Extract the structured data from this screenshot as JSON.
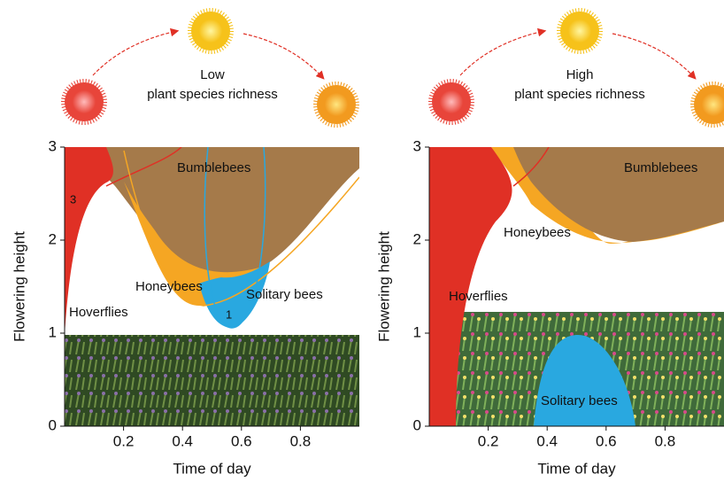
{
  "chart_data": [
    {
      "type": "area",
      "title_lines": [
        "Low",
        "plant species richness"
      ],
      "xlabel": "Time of day",
      "ylabel": "Flowering height",
      "xlim": [
        0,
        1
      ],
      "ylim": [
        0,
        3
      ],
      "xticks": [
        0.2,
        0.4,
        0.6,
        0.8
      ],
      "yticks": [
        0,
        1,
        2,
        3
      ],
      "annotations": [
        "Bumblebees",
        "Honeybees",
        "Solitary bees",
        "Hoverflies",
        "3",
        "1"
      ]
    },
    {
      "type": "area",
      "title_lines": [
        "High",
        "plant species richness"
      ],
      "xlabel": "Time of day",
      "ylabel": "Flowering height",
      "xlim": [
        0,
        1
      ],
      "ylim": [
        0,
        3
      ],
      "xticks": [
        0.2,
        0.4,
        0.6,
        0.8
      ],
      "yticks": [
        0,
        1,
        2,
        3
      ],
      "annotations": [
        "Bumblebees",
        "Honeybees",
        "Hoverflies",
        "Solitary bees"
      ]
    }
  ]
}
